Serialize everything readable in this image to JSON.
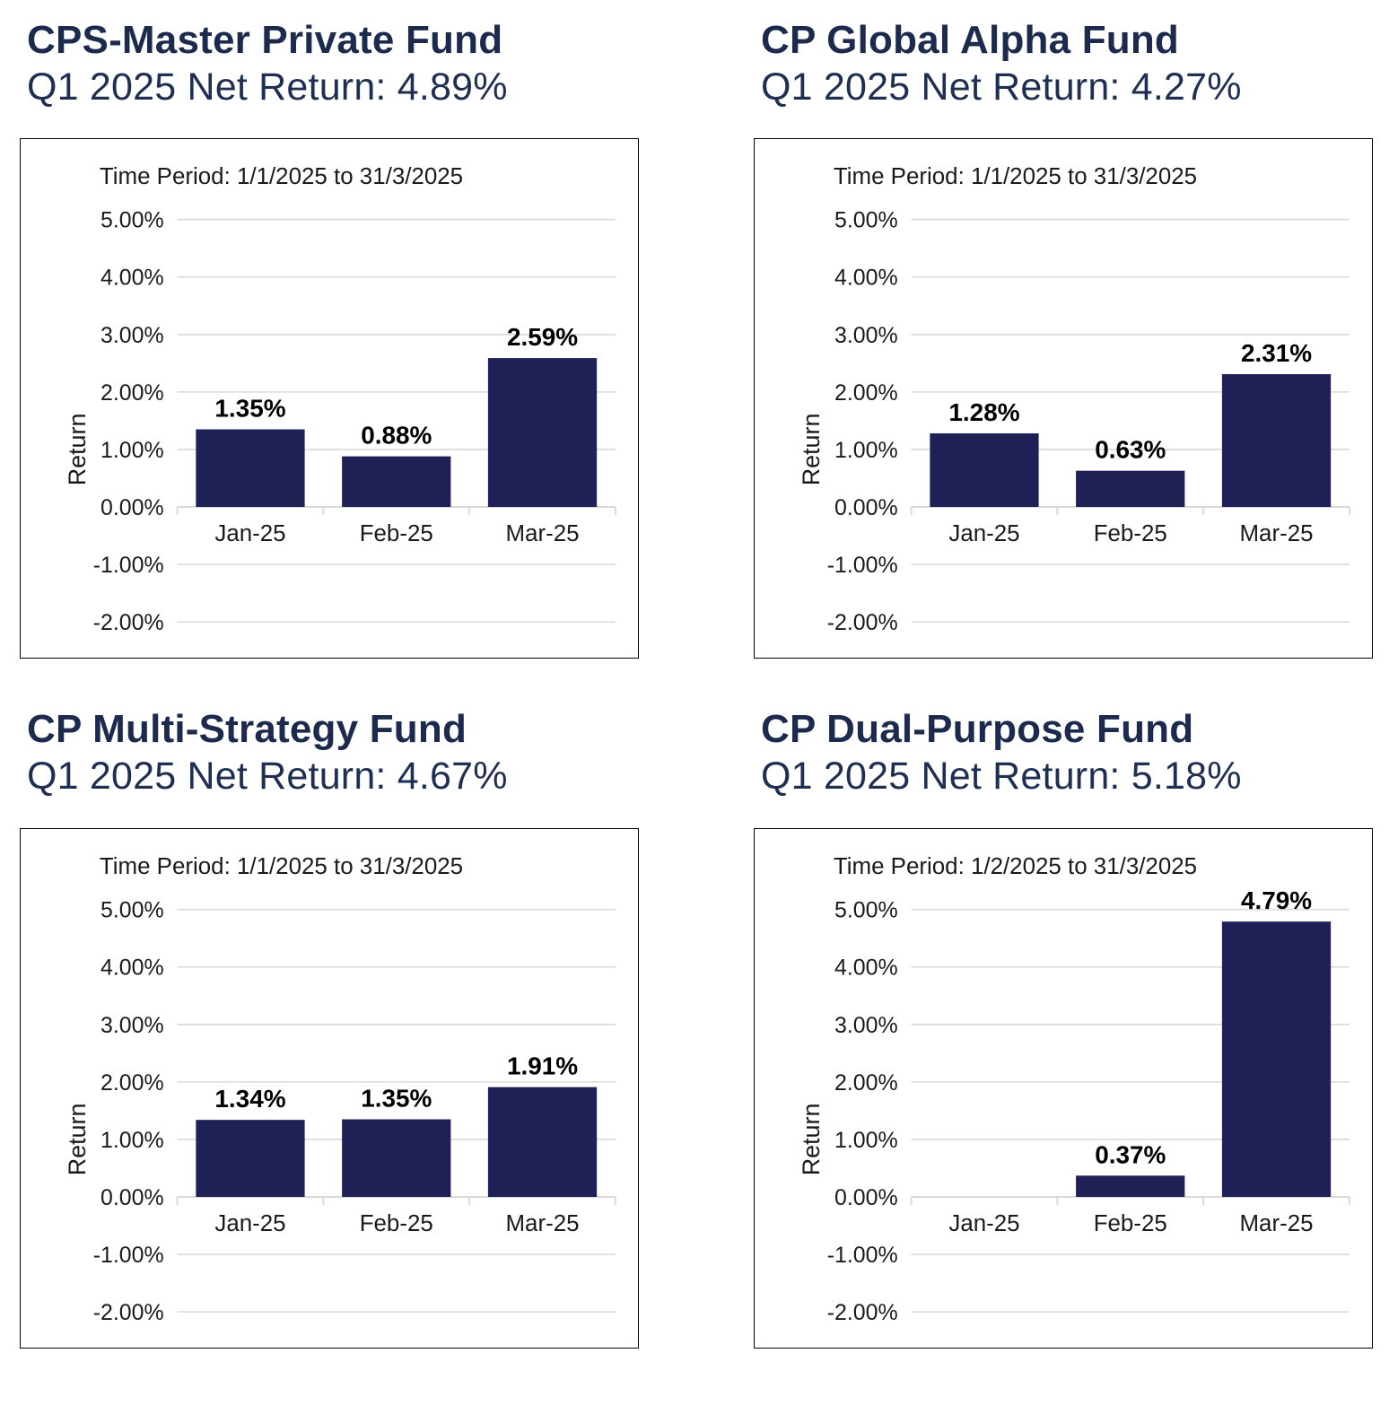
{
  "colors": {
    "bar": "#1F2156",
    "heading": "#1B2A4D",
    "grid": "#D9D9D9",
    "axis": "#D9D9D9",
    "chart_text": "#1a1a1a",
    "value_label": "#000000",
    "chart_border": "#000000"
  },
  "panels": [
    {
      "title": "CPS-Master Private Fund",
      "subtitle": "Q1 2025 Net Return: 4.89%"
    },
    {
      "title": "CP Global Alpha Fund",
      "subtitle": "Q1 2025 Net Return: 4.27%"
    },
    {
      "title": "CP Multi-Strategy Fund",
      "subtitle": "Q1 2025 Net Return: 4.67%"
    },
    {
      "title": "CP Dual-Purpose Fund",
      "subtitle": "Q1 2025 Net Return: 5.18%"
    }
  ],
  "chart_data": [
    {
      "type": "bar",
      "title": "Time Period: 1/1/2025 to 31/3/2025",
      "categories": [
        "Jan-25",
        "Feb-25",
        "Mar-25"
      ],
      "values": [
        1.35,
        0.88,
        2.59
      ],
      "value_labels": [
        "1.35%",
        "0.88%",
        "2.59%"
      ],
      "xlabel": "",
      "ylabel": "Return",
      "ylim": [
        -2,
        5
      ],
      "grid": true,
      "legend": "none",
      "yticks": [
        {
          "value": 5,
          "label": "5.00%"
        },
        {
          "value": 4,
          "label": "4.00%"
        },
        {
          "value": 3,
          "label": "3.00%"
        },
        {
          "value": 2,
          "label": "2.00%"
        },
        {
          "value": 1,
          "label": "1.00%"
        },
        {
          "value": 0,
          "label": "0.00%"
        },
        {
          "value": -1,
          "label": "-1.00%"
        },
        {
          "value": -2,
          "label": "-2.00%"
        }
      ]
    },
    {
      "type": "bar",
      "title": "Time Period: 1/1/2025 to 31/3/2025",
      "categories": [
        "Jan-25",
        "Feb-25",
        "Mar-25"
      ],
      "values": [
        1.28,
        0.63,
        2.31
      ],
      "value_labels": [
        "1.28%",
        "0.63%",
        "2.31%"
      ],
      "xlabel": "",
      "ylabel": "Return",
      "ylim": [
        -2,
        5
      ],
      "grid": true,
      "legend": "none",
      "yticks": [
        {
          "value": 5,
          "label": "5.00%"
        },
        {
          "value": 4,
          "label": "4.00%"
        },
        {
          "value": 3,
          "label": "3.00%"
        },
        {
          "value": 2,
          "label": "2.00%"
        },
        {
          "value": 1,
          "label": "1.00%"
        },
        {
          "value": 0,
          "label": "0.00%"
        },
        {
          "value": -1,
          "label": "-1.00%"
        },
        {
          "value": -2,
          "label": "-2.00%"
        }
      ]
    },
    {
      "type": "bar",
      "title": "Time Period: 1/1/2025 to 31/3/2025",
      "categories": [
        "Jan-25",
        "Feb-25",
        "Mar-25"
      ],
      "values": [
        1.34,
        1.35,
        1.91
      ],
      "value_labels": [
        "1.34%",
        "1.35%",
        "1.91%"
      ],
      "xlabel": "",
      "ylabel": "Return",
      "ylim": [
        -2,
        5
      ],
      "grid": true,
      "legend": "none",
      "yticks": [
        {
          "value": 5,
          "label": "5.00%"
        },
        {
          "value": 4,
          "label": "4.00%"
        },
        {
          "value": 3,
          "label": "3.00%"
        },
        {
          "value": 2,
          "label": "2.00%"
        },
        {
          "value": 1,
          "label": "1.00%"
        },
        {
          "value": 0,
          "label": "0.00%"
        },
        {
          "value": -1,
          "label": "-1.00%"
        },
        {
          "value": -2,
          "label": "-2.00%"
        }
      ]
    },
    {
      "type": "bar",
      "title": "Time Period: 1/2/2025 to 31/3/2025",
      "categories": [
        "Jan-25",
        "Feb-25",
        "Mar-25"
      ],
      "values": [
        null,
        0.37,
        4.79
      ],
      "value_labels": [
        null,
        "0.37%",
        "4.79%"
      ],
      "xlabel": "",
      "ylabel": "Return",
      "ylim": [
        -2,
        5
      ],
      "grid": true,
      "legend": "none",
      "yticks": [
        {
          "value": 5,
          "label": "5.00%"
        },
        {
          "value": 4,
          "label": "4.00%"
        },
        {
          "value": 3,
          "label": "3.00%"
        },
        {
          "value": 2,
          "label": "2.00%"
        },
        {
          "value": 1,
          "label": "1.00%"
        },
        {
          "value": 0,
          "label": "0.00%"
        },
        {
          "value": -1,
          "label": "-1.00%"
        },
        {
          "value": -2,
          "label": "-2.00%"
        }
      ]
    }
  ]
}
